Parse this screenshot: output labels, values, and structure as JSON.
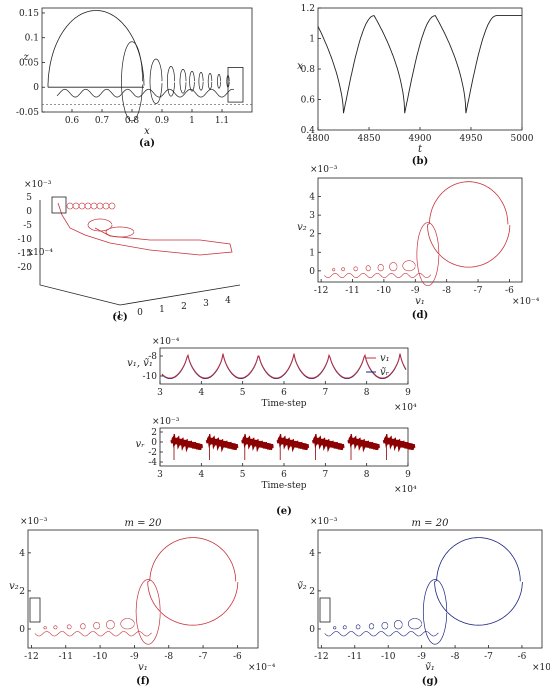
{
  "colors": {
    "black": "#222222",
    "red": "#c8323c",
    "darkred": "#8b0000",
    "blue": "#1a237e"
  },
  "chart_data": [
    {
      "id": "a",
      "type": "line",
      "caption": "(a)",
      "xlabel": "x",
      "ylabel": "z",
      "xlim": [
        0.5,
        1.2
      ],
      "ylim": [
        -0.05,
        0.16
      ],
      "xticks": [
        "0.6",
        "0.7",
        "0.8",
        "0.9",
        "1",
        "1.1"
      ],
      "yticks": [
        "-0.05",
        "0",
        "0.05",
        "0.1",
        "0.15"
      ],
      "series": [
        {
          "description": "phase trajectory spiraling into fixed point",
          "values": []
        }
      ]
    },
    {
      "id": "b",
      "type": "line",
      "caption": "(b)",
      "xlabel": "t",
      "ylabel": "x",
      "xlim": [
        4800,
        5000
      ],
      "ylim": [
        0.4,
        1.2
      ],
      "xticks": [
        "4800",
        "4850",
        "4900",
        "4950",
        "5000"
      ],
      "yticks": [
        "0.4",
        "0.6",
        "0.8",
        "1",
        "1.2"
      ],
      "x": [
        4800,
        4825,
        4855,
        4885,
        4915,
        4945,
        4975,
        5000
      ],
      "values": [
        1.08,
        0.51,
        1.15,
        0.51,
        1.15,
        0.51,
        1.15,
        0.82
      ]
    },
    {
      "id": "c",
      "type": "line",
      "caption": "(c)",
      "exponent": "×10⁻³",
      "exponent2": "×10⁻⁴",
      "yticks": [
        "5",
        "0",
        "-5",
        "-10",
        "-15",
        "-20"
      ],
      "xticks": [
        "-1",
        "0",
        "1",
        "2",
        "3",
        "4"
      ],
      "ztick_label": "x10⁻⁴"
    },
    {
      "id": "d",
      "type": "line",
      "caption": "(d)",
      "xlabel": "v₁",
      "ylabel": "v₂",
      "xexp": "×10⁻⁴",
      "yexp": "×10⁻³",
      "xlim": [
        -12,
        -5.5
      ],
      "ylim": [
        -0.6,
        5
      ],
      "xticks": [
        "-12",
        "-11",
        "-10",
        "-9",
        "-8",
        "-7",
        "-6"
      ],
      "yticks": [
        "0",
        "1",
        "2",
        "3",
        "4"
      ]
    },
    {
      "id": "e1",
      "type": "line",
      "xlabel": "Time-step",
      "ylabel": "v₁, ṽ₁",
      "xexp": "×10⁴",
      "yexp": "×10⁻⁴",
      "xticks": [
        "3",
        "4",
        "5",
        "6",
        "7",
        "8",
        "9"
      ],
      "yticks": [
        "-8",
        "-10"
      ],
      "legend": [
        "v₁",
        "ṽᵣ"
      ]
    },
    {
      "id": "e2",
      "type": "line",
      "caption": "(e)",
      "xlabel": "Time-step",
      "ylabel": "vᵣ",
      "xexp": "×10⁴",
      "yexp": "×10⁻³",
      "xticks": [
        "3",
        "4",
        "5",
        "6",
        "7",
        "8",
        "9"
      ],
      "yticks": [
        "2",
        "0",
        "-2",
        "-4"
      ]
    },
    {
      "id": "f",
      "type": "line",
      "caption": "(f)",
      "title": "m = 20",
      "xlabel": "v₁",
      "ylabel": "v₂",
      "xexp": "×10⁻⁴",
      "yexp": "×10⁻³",
      "xticks": [
        "-12",
        "-11",
        "-10",
        "-9",
        "-8",
        "-7",
        "-6"
      ],
      "yticks": [
        "0",
        "2",
        "4"
      ]
    },
    {
      "id": "g",
      "type": "line",
      "caption": "(g)",
      "title": "m = 20",
      "xlabel": "ṽ₁",
      "ylabel": "ṽ₂",
      "xexp": "×10⁻⁴",
      "yexp": "×10⁻³",
      "xticks": [
        "-12",
        "-11",
        "-10",
        "-9",
        "-8",
        "-7",
        "-6"
      ],
      "yticks": [
        "0",
        "2",
        "4"
      ]
    }
  ]
}
